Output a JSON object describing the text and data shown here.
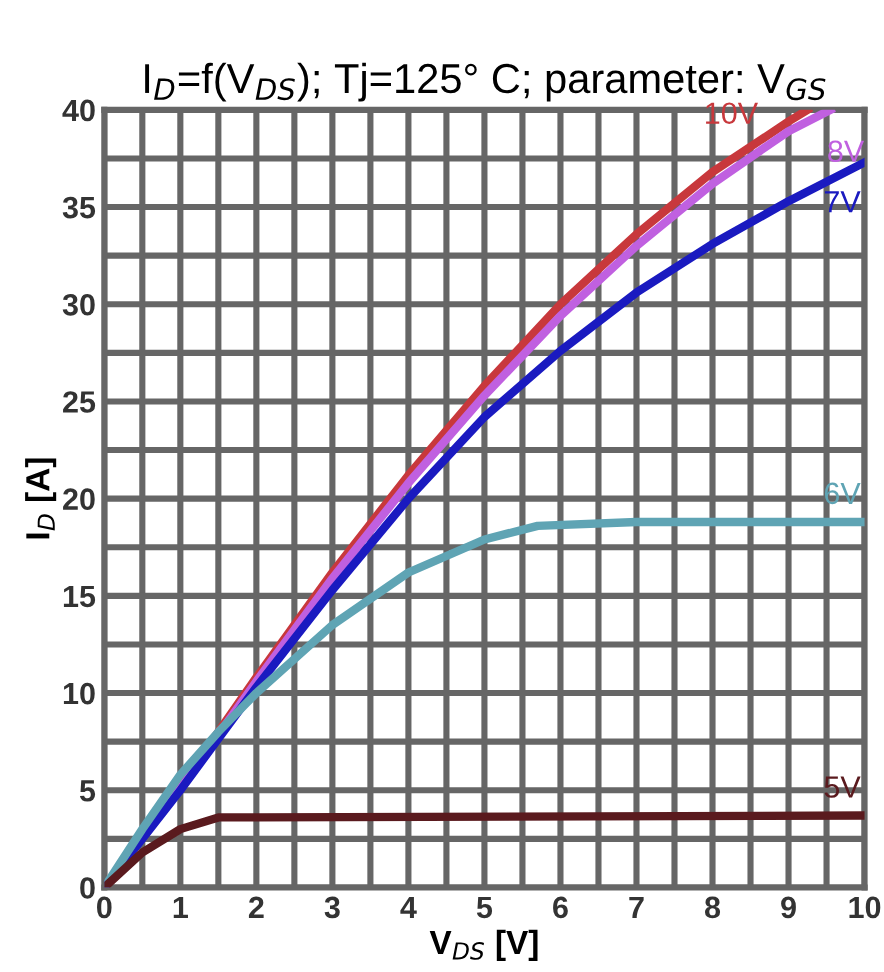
{
  "chart_data": {
    "type": "line",
    "title": "I$_{D}$=f(V$_{DS}$); Tj=125° C; parameter: V$_{GS}$",
    "xlabel": "V$_{DS}$ [V]",
    "ylabel": "I$_{D}$ [A]",
    "xlim": [
      0,
      10
    ],
    "ylim": [
      0,
      40
    ],
    "xticks": [
      0,
      {
        "value": 0.5,
        "label": null
      },
      1,
      {
        "value": 1.5,
        "label": null
      },
      2,
      {
        "value": 2.5,
        "label": null
      },
      3,
      {
        "value": 3.5,
        "label": null
      },
      4,
      {
        "value": 4.5,
        "label": null
      },
      5,
      {
        "value": 5.5,
        "label": null
      },
      6,
      {
        "value": 6.5,
        "label": null
      },
      7,
      {
        "value": 7.5,
        "label": null
      },
      8,
      {
        "value": 8.5,
        "label": null
      },
      9,
      {
        "value": 9.5,
        "label": null
      },
      10
    ],
    "yticks": [
      0,
      {
        "value": 2.5,
        "label": null
      },
      5,
      {
        "value": 7.5,
        "label": null
      },
      10,
      {
        "value": 12.5,
        "label": null
      },
      15,
      {
        "value": 17.5,
        "label": null
      },
      20,
      {
        "value": 22.5,
        "label": null
      },
      25,
      {
        "value": 27.5,
        "label": null
      },
      30,
      {
        "value": 32.5,
        "label": null
      },
      35,
      {
        "value": 37.5,
        "label": null
      },
      40
    ],
    "grid": true,
    "legend": false,
    "marker": "none",
    "line_style": "solid",
    "series": [
      {
        "name": "10V",
        "color": "#c8383c",
        "x": [
          0,
          1,
          2,
          3,
          4,
          5,
          6,
          7,
          8,
          9,
          9.25
        ],
        "values": [
          0,
          5.2,
          10.8,
          16.2,
          21.2,
          25.8,
          30,
          33.6,
          36.8,
          39.4,
          40
        ]
      },
      {
        "name": "8V",
        "color": "#c060e0",
        "x": [
          0,
          1,
          2,
          3,
          4,
          5,
          6,
          7,
          8,
          9,
          9.55
        ],
        "values": [
          0,
          5.1,
          10.6,
          15.9,
          20.8,
          25.3,
          29.4,
          33,
          36.2,
          38.9,
          40
        ]
      },
      {
        "name": "7V",
        "color": "#1a1ac0",
        "x": [
          0,
          1,
          2,
          3,
          4,
          5,
          6,
          7,
          8,
          9,
          10
        ],
        "values": [
          0,
          5,
          10.3,
          15.3,
          20,
          24.2,
          27.6,
          30.6,
          33.1,
          35.3,
          37.3
        ]
      },
      {
        "name": "6V",
        "color": "#5fa4b4",
        "x": [
          0,
          0.5,
          1,
          1.5,
          2,
          3,
          4,
          5,
          5.7,
          7,
          10
        ],
        "values": [
          0,
          3,
          5.8,
          8,
          10,
          13.5,
          16.2,
          17.9,
          18.6,
          18.8,
          18.8
        ]
      },
      {
        "name": "5V",
        "color": "#5a1a1e",
        "x": [
          0,
          0.5,
          1,
          1.5,
          2,
          10
        ],
        "values": [
          0,
          1.8,
          3,
          3.6,
          3.6,
          3.7
        ]
      }
    ]
  }
}
